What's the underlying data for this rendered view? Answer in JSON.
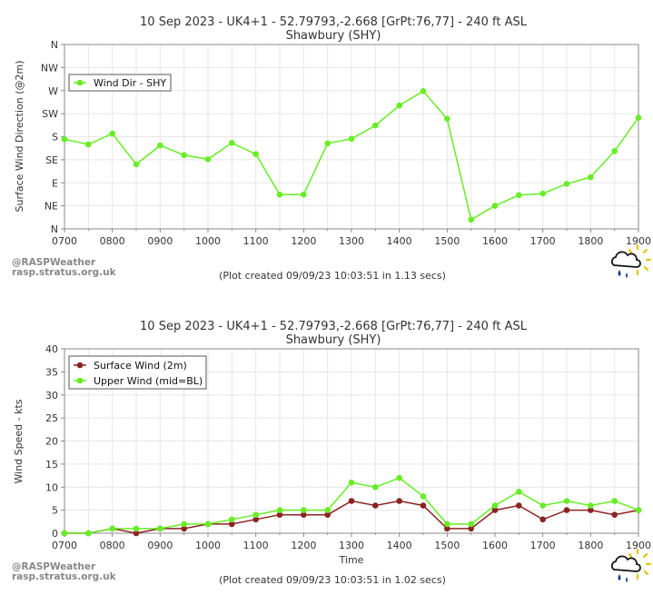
{
  "charts": [
    {
      "title_line1": "10 Sep 2023 - UK4+1 - 52.79793,-2.668 [GrPt:76,77]  - 240 ft ASL",
      "title_line2": "Shawbury (SHY)",
      "ylabel": "Surface Wind Direction (@2m)",
      "xlabel": "",
      "legend": [
        "Wind Dir - SHY"
      ],
      "credit_line1": "@RASPWeather",
      "credit_line2": "rasp.stratus.org.uk",
      "footnote": "(Plot created 09/09/23 10:03:51 in 1.13 secs)"
    },
    {
      "title_line1": "10 Sep 2023 - UK4+1 - 52.79793,-2.668 [GrPt:76,77]  - 240 ft ASL",
      "title_line2": "Shawbury (SHY)",
      "ylabel": "Wind Speed - kts",
      "xlabel": "Time",
      "legend": [
        "Surface Wind (2m)",
        "Upper Wind (mid=BL)"
      ],
      "credit_line1": "@RASPWeather",
      "credit_line2": "rasp.stratus.org.uk",
      "footnote": "(Plot created 09/09/23 10:03:51 in 1.02 secs)"
    }
  ],
  "chart_data": [
    {
      "type": "line",
      "title": "10 Sep 2023 - UK4+1 - 52.79793,-2.668 [GrPt:76,77]  - 240 ft ASL / Shawbury (SHY)",
      "xlabel": "",
      "ylabel": "Surface Wind Direction (@2m)",
      "x_ticks": [
        "0700",
        "0800",
        "0900",
        "1000",
        "1100",
        "1200",
        "1300",
        "1400",
        "1500",
        "1600",
        "1700",
        "1800",
        "1900"
      ],
      "y_ticks": [
        "N",
        "NE",
        "E",
        "SE",
        "S",
        "SW",
        "W",
        "NW",
        "N"
      ],
      "ylim": [
        0,
        360
      ],
      "xlim": [
        "0700",
        "1900"
      ],
      "grid": true,
      "legend_position": "top-left",
      "x": [
        "0700",
        "0730",
        "0800",
        "0830",
        "0900",
        "0930",
        "1000",
        "1030",
        "1100",
        "1130",
        "1200",
        "1230",
        "1300",
        "1330",
        "1400",
        "1430",
        "1500",
        "1530",
        "1600",
        "1630",
        "1700",
        "1730",
        "1800",
        "1830",
        "1900"
      ],
      "series": [
        {
          "name": "Wind Dir - SHY",
          "color": "#66ee22",
          "values": [
            175,
            165,
            186,
            126,
            163,
            144,
            136,
            168,
            146,
            67,
            67,
            167,
            176,
            202,
            241,
            269,
            215,
            18,
            45,
            66,
            69,
            88,
            101,
            152,
            217
          ]
        }
      ]
    },
    {
      "type": "line",
      "title": "10 Sep 2023 - UK4+1 - 52.79793,-2.668 [GrPt:76,77]  - 240 ft ASL / Shawbury (SHY)",
      "xlabel": "Time",
      "ylabel": "Wind Speed - kts",
      "x_ticks": [
        "0700",
        "0800",
        "0900",
        "1000",
        "1100",
        "1200",
        "1300",
        "1400",
        "1500",
        "1600",
        "1700",
        "1800",
        "1900"
      ],
      "y_ticks": [
        "0",
        "5",
        "10",
        "15",
        "20",
        "25",
        "30",
        "35",
        "40"
      ],
      "ylim": [
        0,
        40
      ],
      "xlim": [
        "0700",
        "1900"
      ],
      "grid": true,
      "legend_position": "top-left",
      "x": [
        "0700",
        "0730",
        "0800",
        "0830",
        "0900",
        "0930",
        "1000",
        "1030",
        "1100",
        "1130",
        "1200",
        "1230",
        "1300",
        "1330",
        "1400",
        "1430",
        "1500",
        "1530",
        "1600",
        "1630",
        "1700",
        "1730",
        "1800",
        "1830",
        "1900"
      ],
      "series": [
        {
          "name": "Surface Wind (2m)",
          "color": "#8b2323",
          "values": [
            0,
            0,
            1,
            0,
            1,
            1,
            2,
            2,
            3,
            4,
            4,
            4,
            7,
            6,
            7,
            6,
            1,
            1,
            5,
            6,
            3,
            5,
            5,
            4,
            5
          ]
        },
        {
          "name": "Upper Wind (mid=BL)",
          "color": "#66ee22",
          "values": [
            0,
            0,
            1,
            1,
            1,
            2,
            2,
            3,
            4,
            5,
            5,
            5,
            11,
            10,
            12,
            8,
            2,
            2,
            6,
            9,
            6,
            7,
            6,
            7,
            5
          ]
        }
      ]
    }
  ]
}
